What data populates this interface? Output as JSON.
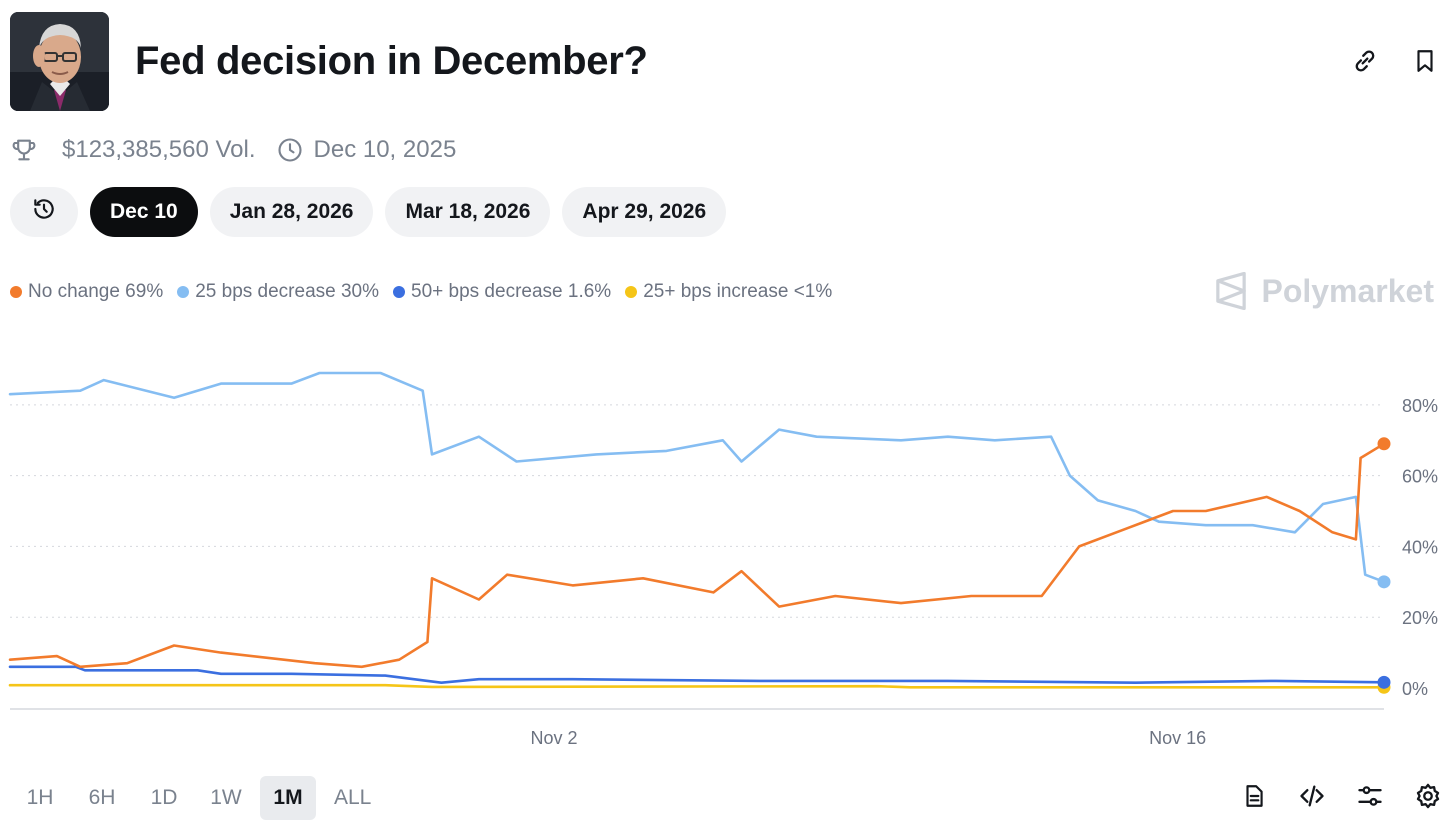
{
  "header": {
    "title": "Fed decision in December?"
  },
  "meta": {
    "volume": "$123,385,560 Vol.",
    "date": "Dec 10, 2025"
  },
  "tabs": [
    {
      "label": "Dec 10",
      "active": true
    },
    {
      "label": "Jan 28, 2026",
      "active": false
    },
    {
      "label": "Mar 18, 2026",
      "active": false
    },
    {
      "label": "Apr 29, 2026",
      "active": false
    }
  ],
  "legend": [
    {
      "label": "No change 69%",
      "color": "#f27b2c"
    },
    {
      "label": "25 bps decrease 30%",
      "color": "#85bdf2"
    },
    {
      "label": "50+ bps decrease 1.6%",
      "color": "#3b6fe0"
    },
    {
      "label": "25+ bps increase <1%",
      "color": "#f5c518"
    }
  ],
  "brand": {
    "name": "Polymarket"
  },
  "ranges": [
    {
      "label": "1H",
      "active": false
    },
    {
      "label": "6H",
      "active": false
    },
    {
      "label": "1D",
      "active": false
    },
    {
      "label": "1W",
      "active": false
    },
    {
      "label": "1M",
      "active": true
    },
    {
      "label": "ALL",
      "active": false
    }
  ],
  "icons": {
    "link": "link-icon",
    "bookmark": "bookmark-icon",
    "trophy": "trophy-icon",
    "clock": "clock-icon",
    "history": "history-icon",
    "document": "document-icon",
    "code": "code-icon",
    "sliders": "sliders-icon",
    "settings": "gear-icon"
  },
  "chart_data": {
    "type": "line",
    "x_range": [
      "Oct 23",
      "Nov 21"
    ],
    "xticks": [
      {
        "label": "Nov 2",
        "x": 11.6
      },
      {
        "label": "Nov 16",
        "x": 24.9
      }
    ],
    "yticks": [
      "0%",
      "20%",
      "40%",
      "60%",
      "80%"
    ],
    "ylim": [
      0,
      100
    ],
    "y_unit": "%",
    "x_unit": "days since start of visible range",
    "grid": true,
    "series": [
      {
        "name": "No change",
        "color": "#f27b2c",
        "points": [
          [
            0,
            8
          ],
          [
            1,
            9
          ],
          [
            1.5,
            6
          ],
          [
            2.5,
            7
          ],
          [
            3.5,
            12
          ],
          [
            4.5,
            10
          ],
          [
            6.5,
            7
          ],
          [
            7.5,
            6
          ],
          [
            8.3,
            8
          ],
          [
            8.9,
            13
          ],
          [
            9,
            31
          ],
          [
            10,
            25
          ],
          [
            10.6,
            32
          ],
          [
            12,
            29
          ],
          [
            13.5,
            31
          ],
          [
            15,
            27
          ],
          [
            15.6,
            33
          ],
          [
            16.4,
            23
          ],
          [
            17.6,
            26
          ],
          [
            19,
            24
          ],
          [
            20.5,
            26
          ],
          [
            22,
            26
          ],
          [
            22.8,
            40
          ],
          [
            23.8,
            45
          ],
          [
            24.8,
            50
          ],
          [
            25.5,
            50
          ],
          [
            26.8,
            54
          ],
          [
            27.5,
            50
          ],
          [
            28.2,
            44
          ],
          [
            28.7,
            42
          ],
          [
            28.8,
            65
          ],
          [
            29.3,
            69
          ]
        ]
      },
      {
        "name": "25 bps decrease",
        "color": "#85bdf2",
        "points": [
          [
            0,
            83
          ],
          [
            1.5,
            84
          ],
          [
            2,
            87
          ],
          [
            3.2,
            83
          ],
          [
            3.5,
            82
          ],
          [
            4.5,
            86
          ],
          [
            6,
            86
          ],
          [
            6.6,
            89
          ],
          [
            7.9,
            89
          ],
          [
            8.8,
            84
          ],
          [
            9,
            66
          ],
          [
            10,
            71
          ],
          [
            10.8,
            64
          ],
          [
            12.5,
            66
          ],
          [
            14,
            67
          ],
          [
            15.2,
            70
          ],
          [
            15.6,
            64
          ],
          [
            16.4,
            73
          ],
          [
            17.2,
            71
          ],
          [
            19,
            70
          ],
          [
            20,
            71
          ],
          [
            21,
            70
          ],
          [
            22.2,
            71
          ],
          [
            22.6,
            60
          ],
          [
            23.2,
            53
          ],
          [
            24,
            50
          ],
          [
            24.5,
            47
          ],
          [
            25.5,
            46
          ],
          [
            26.5,
            46
          ],
          [
            27.4,
            44
          ],
          [
            28,
            52
          ],
          [
            28.7,
            54
          ],
          [
            28.9,
            32
          ],
          [
            29.3,
            30
          ]
        ]
      },
      {
        "name": "50+ bps decrease",
        "color": "#3b6fe0",
        "points": [
          [
            0,
            6
          ],
          [
            1.4,
            6
          ],
          [
            1.6,
            5
          ],
          [
            4,
            5
          ],
          [
            4.5,
            4
          ],
          [
            6,
            4
          ],
          [
            8,
            3.5
          ],
          [
            9.2,
            1.5
          ],
          [
            10,
            2.5
          ],
          [
            12,
            2.5
          ],
          [
            16,
            2
          ],
          [
            20,
            2
          ],
          [
            24,
            1.5
          ],
          [
            27,
            2
          ],
          [
            29.3,
            1.6
          ]
        ]
      },
      {
        "name": "25+ bps increase",
        "color": "#f5c518",
        "points": [
          [
            0,
            0.8
          ],
          [
            8,
            0.8
          ],
          [
            9,
            0.3
          ],
          [
            18.5,
            0.5
          ],
          [
            19.2,
            0.2
          ],
          [
            29.3,
            0.2
          ]
        ]
      }
    ]
  }
}
